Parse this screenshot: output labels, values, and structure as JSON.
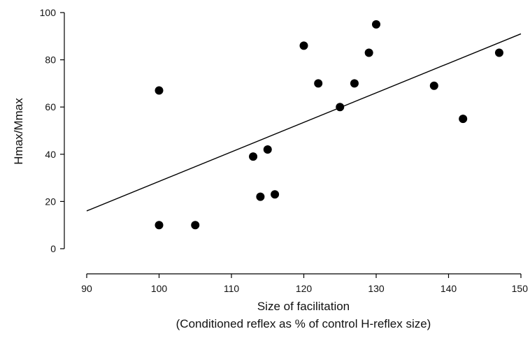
{
  "chart_data": {
    "type": "scatter",
    "title": "",
    "xlabel": "Size of facilitation",
    "xlabel_sub": "(Conditioned reflex as % of control H-reflex size)",
    "ylabel": "Hmax/Mmax",
    "xlim": [
      90,
      150
    ],
    "ylim": [
      0,
      100
    ],
    "xticks": [
      "90",
      "100",
      "110",
      "120",
      "130",
      "140",
      "150"
    ],
    "yticks": [
      "0",
      "20",
      "40",
      "60",
      "80",
      "100"
    ],
    "grid": false,
    "points": [
      {
        "x": 100,
        "y": 67
      },
      {
        "x": 100,
        "y": 10
      },
      {
        "x": 105,
        "y": 10
      },
      {
        "x": 113,
        "y": 39
      },
      {
        "x": 114,
        "y": 22
      },
      {
        "x": 115,
        "y": 42
      },
      {
        "x": 116,
        "y": 23
      },
      {
        "x": 120,
        "y": 86
      },
      {
        "x": 122,
        "y": 70
      },
      {
        "x": 125,
        "y": 60
      },
      {
        "x": 127,
        "y": 70
      },
      {
        "x": 129,
        "y": 83
      },
      {
        "x": 130,
        "y": 95
      },
      {
        "x": 138,
        "y": 69
      },
      {
        "x": 142,
        "y": 55
      },
      {
        "x": 147,
        "y": 83
      }
    ],
    "regression_line": {
      "x": [
        90,
        150
      ],
      "y": [
        16,
        91
      ]
    },
    "colors": {
      "points": "#000000",
      "line": "#000000"
    }
  }
}
